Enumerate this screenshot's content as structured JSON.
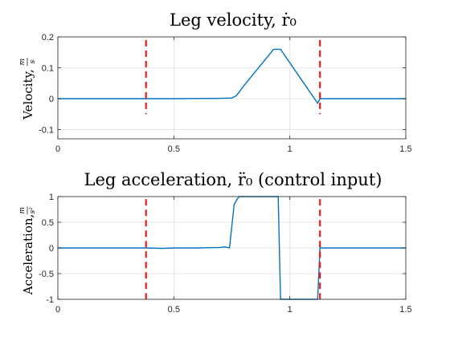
{
  "chart_data": [
    {
      "type": "line",
      "title": "Leg velocity, ṙ₀",
      "ylabel": "Velocity,",
      "yunit_num": "m",
      "yunit_den": "s",
      "xlim": [
        0,
        1.5
      ],
      "ylim": [
        -0.13,
        0.2
      ],
      "xticks": [
        0,
        0.5,
        1,
        1.5
      ],
      "xtick_labels": [
        "0",
        "0.5",
        "1",
        "1.5"
      ],
      "yticks": [
        -0.1,
        0,
        0.1,
        0.2
      ],
      "ytick_labels": [
        "-0.1",
        "0",
        "0.1",
        "0.2"
      ],
      "grid": true,
      "series": [
        {
          "color": "#0072bd",
          "x": [
            0,
            0.38,
            0.5,
            0.7,
            0.75,
            0.77,
            0.8,
            0.93,
            0.96,
            1.12,
            1.13,
            1.5
          ],
          "y": [
            0,
            0,
            0,
            0.001,
            0.002,
            0.01,
            0.04,
            0.16,
            0.16,
            -0.015,
            0,
            0
          ]
        }
      ],
      "vlines": {
        "color": "#ee1c1c",
        "style": "dashed",
        "x": [
          0.38,
          1.13
        ],
        "y_from": -0.05,
        "y_to": 0.19
      }
    },
    {
      "type": "line",
      "title": "Leg acceleration, r̈₀ (control input)",
      "ylabel": "Acceleration,",
      "yunit_num": "m",
      "yunit_den": "s²",
      "xlim": [
        0,
        1.5
      ],
      "ylim": [
        -1,
        1
      ],
      "xticks": [
        0,
        0.5,
        1,
        1.5
      ],
      "xtick_labels": [
        "0",
        "0.5",
        "1",
        "1.5"
      ],
      "yticks": [
        -1,
        -0.5,
        0,
        0.5,
        1
      ],
      "ytick_labels": [
        "-1",
        "-0.5",
        "0",
        "0.5",
        "1"
      ],
      "grid": true,
      "series": [
        {
          "color": "#0072bd",
          "x": [
            0,
            0.38,
            0.45,
            0.5,
            0.6,
            0.7,
            0.72,
            0.74,
            0.76,
            0.78,
            0.8,
            0.95,
            0.96,
            1.12,
            1.13,
            1.5
          ],
          "y": [
            0,
            0,
            -0.01,
            0,
            0,
            0.01,
            0.02,
            0.0,
            0.85,
            1,
            1,
            1,
            -1,
            -1,
            0,
            0
          ]
        }
      ],
      "vlines": {
        "color": "#ee1c1c",
        "style": "dashed",
        "x": [
          0.38,
          1.13
        ],
        "y_from": -1,
        "y_to": 0.95
      }
    }
  ]
}
